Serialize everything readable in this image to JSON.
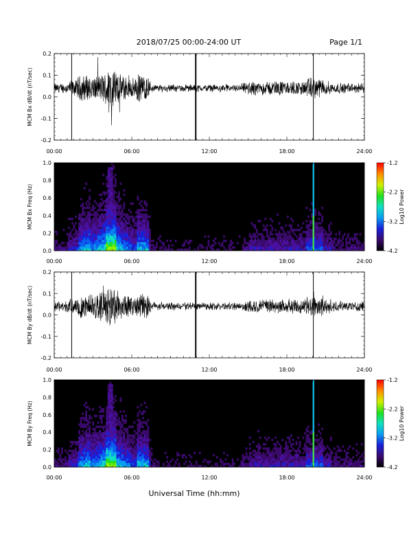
{
  "header": {
    "title": "2018/07/25  00:00-24:00 UT",
    "page": "Page 1/1"
  },
  "xlabel": "Universal Time (hh:mm)",
  "chart_data": [
    {
      "type": "line",
      "ylabel": "MCM Bx dB/dt (nT/sec)",
      "xlim": [
        0,
        24
      ],
      "ylim": [
        -0.2,
        0.2
      ],
      "xticks": [
        0,
        6,
        12,
        18,
        24
      ],
      "xtick_labels": [
        "00:00",
        "06:00",
        "12:00",
        "18:00",
        "24:00"
      ],
      "yticks": [
        -0.2,
        -0.1,
        0.0,
        0.1,
        0.2
      ],
      "ytick_labels": [
        "-0.2",
        "-0.1",
        "0.0",
        "0.1",
        "0.2"
      ],
      "baseline": 0.04,
      "spikes_hours": [
        1.35,
        10.95,
        20.05
      ]
    },
    {
      "type": "heatmap",
      "ylabel": "MCM Bx Freq (Hz)",
      "xlim": [
        0,
        24
      ],
      "ylim": [
        0,
        1.0
      ],
      "xticks": [
        0,
        6,
        12,
        18,
        24
      ],
      "xtick_labels": [
        "00:00",
        "06:00",
        "12:00",
        "18:00",
        "24:00"
      ],
      "yticks": [
        0.0,
        0.2,
        0.4,
        0.6,
        0.8,
        1.0
      ],
      "ytick_labels": [
        "0.0",
        "0.2",
        "0.4",
        "0.6",
        "0.8",
        "1.0"
      ],
      "colorbar": {
        "label": "Log10 Power",
        "min": -4.2,
        "max": -1.2,
        "ticks": [
          -1.2,
          -2.2,
          -3.2,
          -4.2
        ],
        "tick_labels": [
          "-1.2",
          "-2.2",
          "-3.2",
          "-4.2"
        ]
      }
    },
    {
      "type": "line",
      "ylabel": "MCM By dB/dt (nT/sec)",
      "xlim": [
        0,
        24
      ],
      "ylim": [
        -0.2,
        0.2
      ],
      "xticks": [
        0,
        6,
        12,
        18,
        24
      ],
      "xtick_labels": [
        "00:00",
        "06:00",
        "12:00",
        "18:00",
        "24:00"
      ],
      "yticks": [
        -0.2,
        -0.1,
        0.0,
        0.1,
        0.2
      ],
      "ytick_labels": [
        "-0.2",
        "-0.1",
        "0.0",
        "0.1",
        "0.2"
      ],
      "baseline": 0.04,
      "spikes_hours": [
        1.35,
        10.95,
        20.05
      ]
    },
    {
      "type": "heatmap",
      "ylabel": "MCM By Freq (Hz)",
      "xlim": [
        0,
        24
      ],
      "ylim": [
        0,
        1.0
      ],
      "xticks": [
        0,
        6,
        12,
        18,
        24
      ],
      "xtick_labels": [
        "00:00",
        "06:00",
        "12:00",
        "18:00",
        "24:00"
      ],
      "yticks": [
        0.0,
        0.2,
        0.4,
        0.6,
        0.8,
        1.0
      ],
      "ytick_labels": [
        "0.0",
        "0.2",
        "0.4",
        "0.6",
        "0.8",
        "1.0"
      ],
      "colorbar": {
        "label": "Log10 Power",
        "min": -4.2,
        "max": -1.2,
        "ticks": [
          -1.2,
          -2.2,
          -3.2,
          -4.2
        ],
        "tick_labels": [
          "-1.2",
          "-2.2",
          "-3.2",
          "-4.2"
        ]
      }
    }
  ]
}
